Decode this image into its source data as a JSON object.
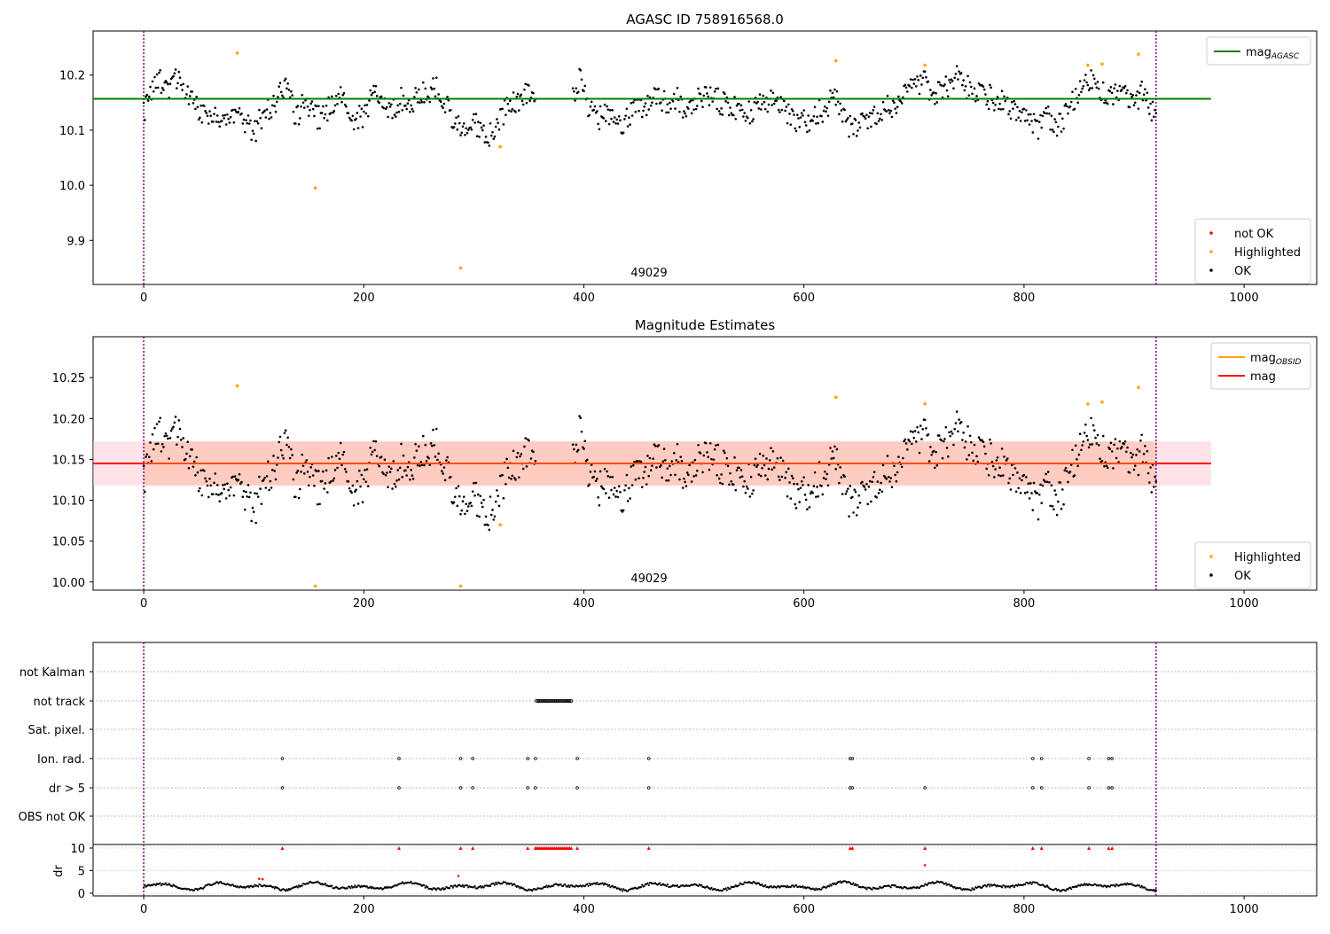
{
  "titles": {
    "top": "AGASC ID 758916568.0",
    "middle": "Magnitude Estimates"
  },
  "annotations": {
    "obsid_top": "49029",
    "obsid_middle": "49029"
  },
  "colors": {
    "ok": "#000000",
    "highlighted": "#ffa500",
    "not_ok": "#ff0000",
    "agasc_line": "#008000",
    "mag_line": "#ff0000",
    "obsid_line": "#ffa500",
    "band": "#ffc0cb",
    "band_inner": "#ffa07a",
    "boundary": "#800080"
  },
  "legends": {
    "top_upper": [
      {
        "label": "mag",
        "sub": "AGASC",
        "kind": "line",
        "color": "#008000"
      }
    ],
    "top_lower": [
      {
        "label": "not OK",
        "kind": "dot",
        "color": "#ff0000"
      },
      {
        "label": "Highlighted",
        "kind": "dot",
        "color": "#ffa500"
      },
      {
        "label": "OK",
        "kind": "dot",
        "color": "#000000"
      }
    ],
    "middle_upper": [
      {
        "label": "mag",
        "sub": "OBSID",
        "kind": "line",
        "color": "#ffa500"
      },
      {
        "label": "mag",
        "sub": "",
        "kind": "line",
        "color": "#ff0000"
      }
    ],
    "middle_lower": [
      {
        "label": "Highlighted",
        "kind": "dot",
        "color": "#ffa500"
      },
      {
        "label": "OK",
        "kind": "dot",
        "color": "#000000"
      }
    ]
  },
  "chart_data": [
    {
      "type": "scatter",
      "title": "AGASC ID 758916568.0",
      "xlim": [
        -46,
        1066
      ],
      "ylim": [
        9.82,
        10.28
      ],
      "x_ticks": [
        0,
        200,
        400,
        600,
        800,
        1000
      ],
      "x_tick_labels": [
        "0",
        "200",
        "400",
        "600",
        "800",
        "1000"
      ],
      "y_ticks": [
        9.9,
        10.0,
        10.1,
        10.2
      ],
      "y_tick_labels": [
        "9.9",
        "10.0",
        "10.1",
        "10.2"
      ],
      "reference_line": {
        "name": "mag_AGASC",
        "y": 10.157,
        "x_range": [
          -46,
          970
        ]
      },
      "obsid_boundaries": [
        0,
        920
      ],
      "series_note": "about 890 OK points, about 10.09-10.21",
      "highlighted_points": [
        [
          85,
          10.24
        ],
        [
          156,
          9.995
        ],
        [
          288,
          9.85
        ],
        [
          324,
          10.07
        ],
        [
          629,
          10.226
        ],
        [
          710,
          10.218
        ],
        [
          858,
          10.218
        ],
        [
          871,
          10.22
        ],
        [
          904,
          10.238
        ]
      ],
      "ok_points": [
        [
          0,
          10.13
        ],
        [
          4,
          10.15
        ],
        [
          10,
          10.18
        ],
        [
          16,
          10.19
        ],
        [
          22,
          10.17
        ],
        [
          28,
          10.2
        ],
        [
          34,
          10.19
        ],
        [
          42,
          10.16
        ],
        [
          48,
          10.14
        ],
        [
          56,
          10.12
        ],
        [
          64,
          10.13
        ],
        [
          70,
          10.11
        ],
        [
          78,
          10.12
        ],
        [
          86,
          10.13
        ],
        [
          94,
          10.11
        ],
        [
          100,
          10.09
        ],
        [
          108,
          10.13
        ],
        [
          116,
          10.14
        ],
        [
          124,
          10.17
        ],
        [
          130,
          10.18
        ],
        [
          138,
          10.12
        ],
        [
          146,
          10.15
        ],
        [
          154,
          10.13
        ],
        [
          162,
          10.12
        ],
        [
          170,
          10.15
        ],
        [
          178,
          10.16
        ],
        [
          186,
          10.13
        ],
        [
          194,
          10.12
        ],
        [
          202,
          10.13
        ],
        [
          210,
          10.17
        ],
        [
          218,
          10.16
        ],
        [
          226,
          10.13
        ],
        [
          234,
          10.16
        ],
        [
          242,
          10.14
        ],
        [
          250,
          10.17
        ],
        [
          258,
          10.16
        ],
        [
          266,
          10.18
        ],
        [
          274,
          10.15
        ],
        [
          282,
          10.12
        ],
        [
          290,
          10.1
        ],
        [
          298,
          10.12
        ],
        [
          306,
          10.1
        ],
        [
          314,
          10.09
        ],
        [
          322,
          10.12
        ],
        [
          330,
          10.14
        ],
        [
          338,
          10.15
        ],
        [
          346,
          10.17
        ],
        [
          354,
          10.16
        ],
        [
          392,
          10.17
        ],
        [
          398,
          10.2
        ],
        [
          404,
          10.14
        ],
        [
          412,
          10.12
        ],
        [
          420,
          10.13
        ],
        [
          428,
          10.12
        ],
        [
          436,
          10.11
        ],
        [
          444,
          10.13
        ],
        [
          452,
          10.14
        ],
        [
          460,
          10.15
        ],
        [
          468,
          10.16
        ],
        [
          476,
          10.15
        ],
        [
          484,
          10.16
        ],
        [
          492,
          10.14
        ],
        [
          500,
          10.15
        ],
        [
          508,
          10.16
        ],
        [
          516,
          10.17
        ],
        [
          524,
          10.15
        ],
        [
          532,
          10.14
        ],
        [
          540,
          10.14
        ],
        [
          548,
          10.13
        ],
        [
          556,
          10.14
        ],
        [
          564,
          10.15
        ],
        [
          572,
          10.16
        ],
        [
          580,
          10.14
        ],
        [
          588,
          10.13
        ],
        [
          596,
          10.11
        ],
        [
          604,
          10.12
        ],
        [
          612,
          10.13
        ],
        [
          620,
          10.14
        ],
        [
          628,
          10.16
        ],
        [
          636,
          10.12
        ],
        [
          644,
          10.1
        ],
        [
          652,
          10.11
        ],
        [
          660,
          10.12
        ],
        [
          668,
          10.13
        ],
        [
          676,
          10.14
        ],
        [
          684,
          10.15
        ],
        [
          692,
          10.16
        ],
        [
          700,
          10.18
        ],
        [
          708,
          10.19
        ],
        [
          716,
          10.17
        ],
        [
          724,
          10.17
        ],
        [
          732,
          10.18
        ],
        [
          740,
          10.2
        ],
        [
          748,
          10.18
        ],
        [
          756,
          10.17
        ],
        [
          764,
          10.16
        ],
        [
          772,
          10.16
        ],
        [
          780,
          10.15
        ],
        [
          788,
          10.14
        ],
        [
          796,
          10.13
        ],
        [
          804,
          10.12
        ],
        [
          812,
          10.1
        ],
        [
          820,
          10.13
        ],
        [
          828,
          10.11
        ],
        [
          836,
          10.12
        ],
        [
          844,
          10.15
        ],
        [
          852,
          10.17
        ],
        [
          860,
          10.19
        ],
        [
          868,
          10.18
        ],
        [
          876,
          10.16
        ],
        [
          884,
          10.17
        ],
        [
          892,
          10.16
        ],
        [
          900,
          10.15
        ],
        [
          908,
          10.17
        ],
        [
          914,
          10.14
        ],
        [
          920,
          10.12
        ]
      ]
    },
    {
      "type": "scatter",
      "title": "Magnitude Estimates",
      "xlim": [
        -46,
        1066
      ],
      "ylim": [
        9.99,
        10.3
      ],
      "x_ticks": [
        0,
        200,
        400,
        600,
        800,
        1000
      ],
      "x_tick_labels": [
        "0",
        "200",
        "400",
        "600",
        "800",
        "1000"
      ],
      "y_ticks": [
        10.0,
        10.05,
        10.1,
        10.15,
        10.2,
        10.25
      ],
      "y_tick_labels": [
        "10.00",
        "10.05",
        "10.10",
        "10.15",
        "10.20",
        "10.25"
      ],
      "reference_line": {
        "name": "mag",
        "y": 10.145,
        "x_range": [
          -46,
          970
        ]
      },
      "band": {
        "y_low": 10.118,
        "y_high": 10.172,
        "x_range": [
          -46,
          970
        ]
      },
      "band_inner": {
        "y_low": 10.118,
        "y_high": 10.172,
        "x_range": [
          0,
          920
        ]
      },
      "obsid_boundaries": [
        0,
        920
      ],
      "highlighted_points": [
        [
          85,
          10.24
        ],
        [
          156,
          9.995
        ],
        [
          288,
          9.995
        ],
        [
          324,
          10.07
        ],
        [
          629,
          10.226
        ],
        [
          710,
          10.218
        ],
        [
          858,
          10.218
        ],
        [
          871,
          10.22
        ],
        [
          904,
          10.238
        ]
      ],
      "ok_points": "same as top panel"
    },
    {
      "type": "scatter",
      "title": "",
      "xlim": [
        -46,
        1066
      ],
      "categories": [
        "not Kalman",
        "not track",
        "Sat. pixel.",
        "Ion. rad.",
        "dr > 5",
        "OBS not OK"
      ],
      "not_track_range": [
        357,
        389
      ],
      "ion_rad_x": [
        126,
        232,
        288,
        299,
        349,
        356,
        394,
        459,
        642,
        644,
        808,
        816,
        859,
        877,
        880
      ],
      "dr5_x": [
        126,
        232,
        288,
        299,
        349,
        356,
        394,
        459,
        642,
        644,
        710,
        808,
        816,
        859,
        877,
        880
      ],
      "dr_axis": {
        "ylim": [
          0,
          10
        ],
        "y_ticks": [
          0,
          5,
          10
        ],
        "y_tick_labels": [
          "0",
          "5",
          "10"
        ],
        "ylabel": "dr"
      },
      "dr_red_points": [
        [
          105,
          3.2
        ],
        [
          108,
          3.1
        ],
        [
          286,
          3.8
        ],
        [
          710,
          6.2
        ]
      ],
      "x_ticks": [
        0,
        200,
        400,
        600,
        800,
        1000
      ],
      "x_tick_labels": [
        "0",
        "200",
        "400",
        "600",
        "800",
        "1000"
      ]
    }
  ]
}
